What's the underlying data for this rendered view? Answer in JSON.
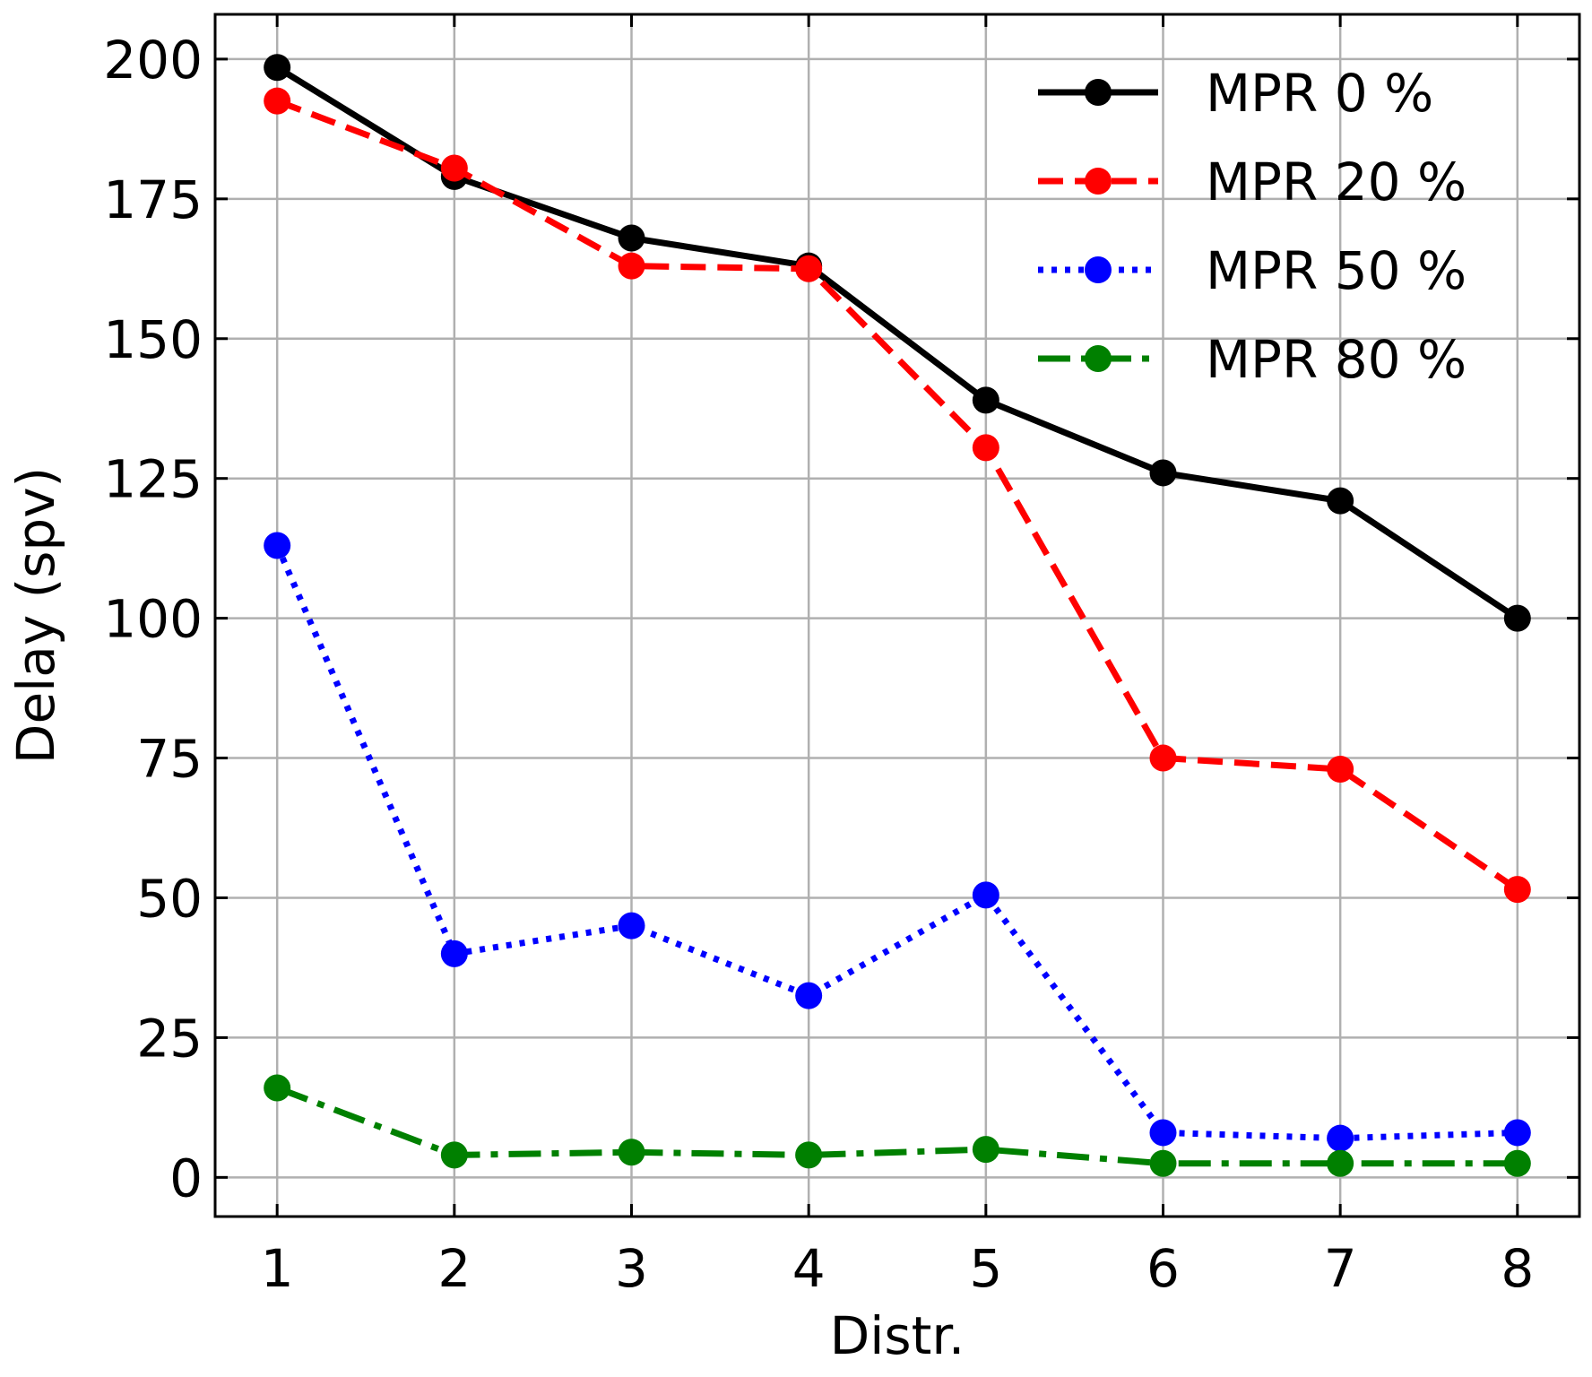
{
  "chart_data": {
    "type": "line",
    "title": "",
    "xlabel": "Distr.",
    "ylabel": "Delay (spv)",
    "x": [
      1,
      2,
      3,
      4,
      5,
      6,
      7,
      8
    ],
    "xticks": [
      "1",
      "2",
      "3",
      "4",
      "5",
      "6",
      "7",
      "8"
    ],
    "yticks": [
      "0",
      "25",
      "50",
      "75",
      "100",
      "125",
      "150",
      "175",
      "200"
    ],
    "ytick_values": [
      0,
      25,
      50,
      75,
      100,
      125,
      150,
      175,
      200
    ],
    "xlim": [
      0.65,
      8.35
    ],
    "ylim": [
      -7,
      208
    ],
    "grid": true,
    "legend_position": "top-right",
    "series": [
      {
        "name": "MPR 0 %",
        "color": "#000000",
        "linestyle": "solid",
        "values": [
          198.5,
          179,
          168,
          163,
          139,
          126,
          121,
          100
        ]
      },
      {
        "name": "MPR 20 %",
        "color": "#ff0000",
        "linestyle": "dashed",
        "values": [
          192.5,
          180.5,
          163,
          162.5,
          130.5,
          75,
          73,
          51.5
        ]
      },
      {
        "name": "MPR 50 %",
        "color": "#0000ff",
        "linestyle": "dotted",
        "values": [
          113,
          40,
          45,
          32.5,
          50.5,
          8,
          7,
          8
        ]
      },
      {
        "name": "MPR 80 %",
        "color": "#008000",
        "linestyle": "dashdot",
        "values": [
          16,
          4,
          4.5,
          4,
          5,
          2.5,
          2.5,
          2.5
        ]
      }
    ]
  }
}
